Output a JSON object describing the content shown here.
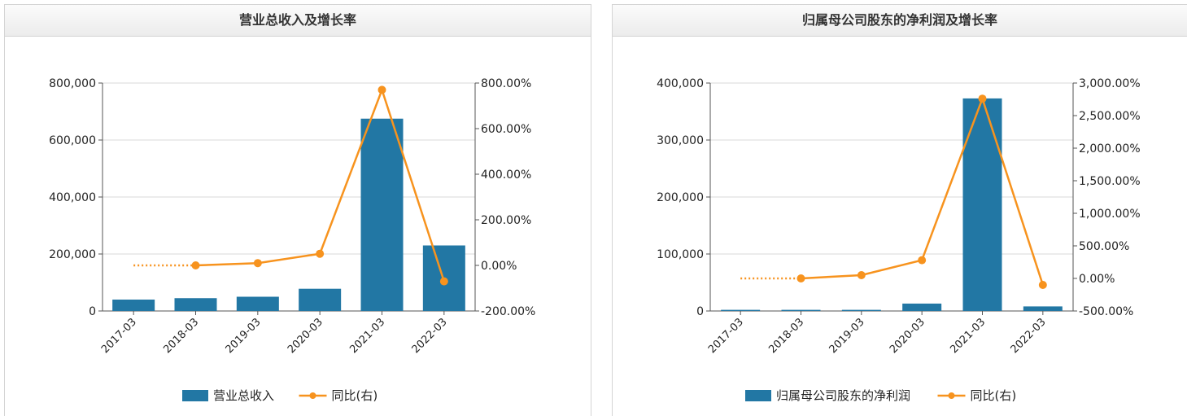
{
  "colors": {
    "bar": "#2277a4",
    "line": "#f7931e",
    "grid": "#d9d9d9",
    "axis": "#555555",
    "text": "#222222"
  },
  "chart_data": [
    {
      "type": "bar",
      "title": "营业总收入及增长率",
      "categories": [
        "2017-03",
        "2018-03",
        "2019-03",
        "2020-03",
        "2021-03",
        "2022-03"
      ],
      "series": [
        {
          "name": "营业总收入",
          "type": "bar",
          "axis": "left",
          "values": [
            40000,
            45000,
            50000,
            78000,
            675000,
            230000
          ]
        },
        {
          "name": "同比(右)",
          "type": "line",
          "axis": "right",
          "values": [
            null,
            0.0,
            10.0,
            51.0,
            770.0,
            -70.0
          ]
        }
      ],
      "left_ticks": [
        "0",
        "200,000",
        "400,000",
        "600,000",
        "800,000"
      ],
      "right_ticks": [
        "-200.00%",
        "0.00%",
        "200.00%",
        "400.00%",
        "600.00%",
        "800.00%"
      ],
      "ylim_left": [
        0,
        800000
      ],
      "ylim_right": [
        -200,
        800
      ],
      "dotted_lead_in": true,
      "grid": true,
      "legend_position": "bottom"
    },
    {
      "type": "bar",
      "title": "归属母公司股东的净利润及增长率",
      "categories": [
        "2017-03",
        "2018-03",
        "2019-03",
        "2020-03",
        "2021-03",
        "2022-03"
      ],
      "series": [
        {
          "name": "归属母公司股东的净利润",
          "type": "bar",
          "axis": "left",
          "values": [
            2000,
            2000,
            2000,
            13000,
            373000,
            8000
          ]
        },
        {
          "name": "同比(右)",
          "type": "line",
          "axis": "right",
          "values": [
            null,
            0.0,
            50.0,
            280.0,
            2760.0,
            -100.0
          ]
        }
      ],
      "left_ticks": [
        "0",
        "100,000",
        "200,000",
        "300,000",
        "400,000"
      ],
      "right_ticks": [
        "-500.00%",
        "0.00%",
        "500.00%",
        "1,000.00%",
        "1,500.00%",
        "2,000.00%",
        "2,500.00%",
        "3,000.00%"
      ],
      "ylim_left": [
        0,
        400000
      ],
      "ylim_right": [
        -500,
        3000
      ],
      "dotted_lead_in": true,
      "grid": true,
      "legend_position": "bottom"
    }
  ]
}
